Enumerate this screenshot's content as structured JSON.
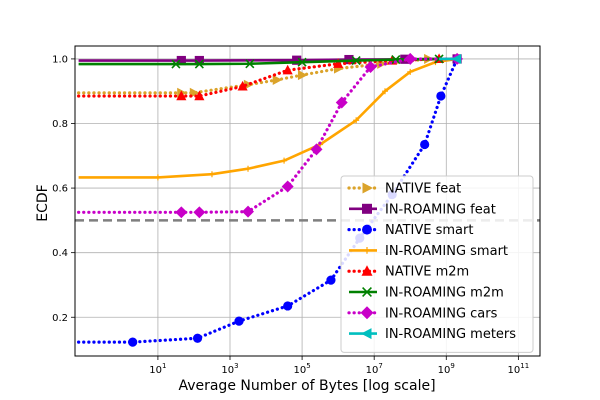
{
  "chart_data": {
    "type": "line",
    "title": "",
    "xlabel": "Average Number of Bytes [log scale]",
    "ylabel": "ECDF",
    "x_scale": "log",
    "xlim_log10": [
      -1.3,
      11.6
    ],
    "ylim": [
      0.08,
      1.04
    ],
    "x_ticks": [
      {
        "exp": 1,
        "label": "10",
        "sup": "1"
      },
      {
        "exp": 3,
        "label": "10",
        "sup": "3"
      },
      {
        "exp": 5,
        "label": "10",
        "sup": "5"
      },
      {
        "exp": 7,
        "label": "10",
        "sup": "7"
      },
      {
        "exp": 9,
        "label": "10",
        "sup": "9"
      },
      {
        "exp": 11,
        "label": "10",
        "sup": "11"
      }
    ],
    "y_ticks": [
      0.2,
      0.4,
      0.6,
      0.8,
      1.0
    ],
    "y_tick_labels": [
      "0.2",
      "0.4",
      "0.6",
      "0.8",
      "1.0"
    ],
    "grid": true,
    "legend_position": "lower-right",
    "reference_line": {
      "y": 0.5,
      "color": "#7f7f7f",
      "style": "dashed"
    },
    "series": [
      {
        "name": "NATIVE feat",
        "color": "#dba32a",
        "dash": "dotted",
        "marker": "triangle-right",
        "x_log": [
          -1.2,
          1.65,
          2.0,
          3.5,
          4.3,
          5.0,
          6.0,
          7.2,
          8.5
        ],
        "y": [
          0.895,
          0.895,
          0.895,
          0.92,
          0.935,
          0.95,
          0.97,
          0.985,
          1.0
        ]
      },
      {
        "name": "IN-ROAMING feat",
        "color": "#800080",
        "dash": "solid",
        "marker": "square",
        "x_log": [
          -1.2,
          1.65,
          2.15,
          4.85,
          6.3,
          7.85,
          9.3
        ],
        "y": [
          0.995,
          0.995,
          0.995,
          0.996,
          0.998,
          0.999,
          1.0
        ]
      },
      {
        "name": "NATIVE smart",
        "color": "#0000ff",
        "dash": "dotted",
        "marker": "circle",
        "x_log": [
          -1.2,
          0.3,
          2.1,
          3.25,
          4.6,
          5.8,
          6.6,
          7.5,
          8.4,
          8.85,
          9.3
        ],
        "y": [
          0.123,
          0.123,
          0.135,
          0.188,
          0.235,
          0.315,
          0.445,
          0.58,
          0.735,
          0.885,
          1.0
        ]
      },
      {
        "name": "IN-ROAMING smart",
        "color": "#ffa500",
        "dash": "solid",
        "marker": "plus",
        "x_log": [
          -1.2,
          1.0,
          2.5,
          3.5,
          4.5,
          5.5,
          6.5,
          7.3,
          8.0,
          8.7,
          9.3
        ],
        "y": [
          0.633,
          0.633,
          0.643,
          0.66,
          0.685,
          0.735,
          0.81,
          0.9,
          0.96,
          0.99,
          1.0
        ]
      },
      {
        "name": "NATIVE m2m",
        "color": "#ff0000",
        "dash": "dotted",
        "marker": "triangle-up",
        "x_log": [
          -1.2,
          1.65,
          2.15,
          3.35,
          4.6,
          6.0,
          7.5,
          8.8
        ],
        "y": [
          0.885,
          0.885,
          0.885,
          0.915,
          0.965,
          0.985,
          0.995,
          1.0
        ]
      },
      {
        "name": "IN-ROAMING m2m",
        "color": "#008000",
        "dash": "solid",
        "marker": "x",
        "x_log": [
          -1.2,
          1.5,
          2.15,
          3.55,
          5.0,
          6.5,
          7.6,
          8.8
        ],
        "y": [
          0.984,
          0.984,
          0.984,
          0.985,
          0.99,
          0.995,
          0.998,
          1.0
        ]
      },
      {
        "name": "IN-ROAMING cars",
        "color": "#c800c8",
        "dash": "dotted",
        "marker": "diamond",
        "x_log": [
          -1.2,
          1.65,
          2.15,
          3.5,
          4.6,
          5.4,
          6.1,
          6.9,
          8.0,
          9.3
        ],
        "y": [
          0.525,
          0.525,
          0.525,
          0.527,
          0.605,
          0.72,
          0.865,
          0.975,
          1.0,
          1.0
        ]
      },
      {
        "name": "IN-ROAMING meters",
        "color": "#00bfbf",
        "dash": "solid",
        "marker": "triangle-left",
        "x_log": [
          8.8,
          9.3
        ],
        "y": [
          1.0,
          1.0
        ]
      }
    ]
  }
}
